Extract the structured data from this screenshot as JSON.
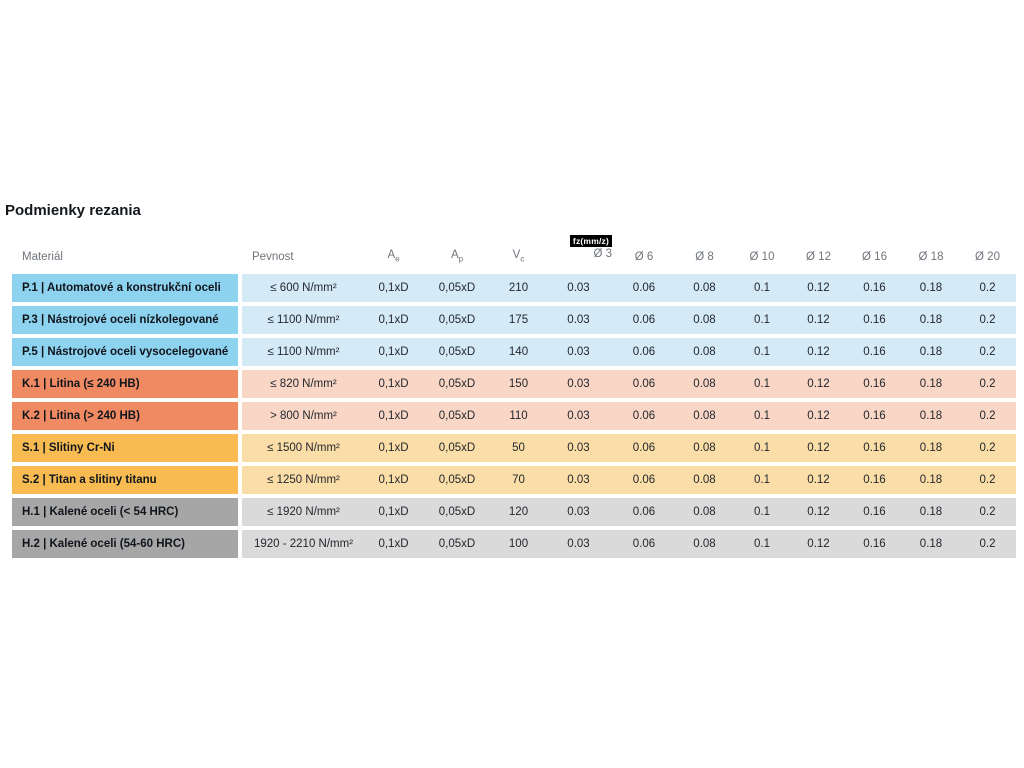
{
  "page": {
    "title": "Podmienky rezania"
  },
  "table": {
    "fz_badge": "fz(mm/z)",
    "columns": {
      "material": "Materiál",
      "pevnost": "Pevnost",
      "ae": {
        "base": "A",
        "sub": "e"
      },
      "ap": {
        "base": "A",
        "sub": "p"
      },
      "vc": {
        "base": "V",
        "sub": "c"
      },
      "diameters": [
        "Ø 3",
        "Ø 6",
        "Ø 8",
        "Ø 10",
        "Ø 12",
        "Ø 16",
        "Ø 18",
        "Ø 20"
      ]
    },
    "rows": [
      {
        "theme": "p",
        "material": "P.1 | Automatové a konstrukční oceli",
        "pevnost": "≤ 600 N/mm²",
        "ae": "0,1xD",
        "ap": "0,05xD",
        "vc": "210",
        "fz": [
          "0.03",
          "0.06",
          "0.08",
          "0.1",
          "0.12",
          "0.16",
          "0.18",
          "0.2"
        ]
      },
      {
        "theme": "p",
        "material": "P.3 | Nástrojové oceli nízkolegované",
        "pevnost": "≤ 1100 N/mm²",
        "ae": "0,1xD",
        "ap": "0,05xD",
        "vc": "175",
        "fz": [
          "0.03",
          "0.06",
          "0.08",
          "0.1",
          "0.12",
          "0.16",
          "0.18",
          "0.2"
        ]
      },
      {
        "theme": "p",
        "material": "P.5 | Nástrojové oceli vysocelegované",
        "pevnost": "≤ 1100 N/mm²",
        "ae": "0,1xD",
        "ap": "0,05xD",
        "vc": "140",
        "fz": [
          "0.03",
          "0.06",
          "0.08",
          "0.1",
          "0.12",
          "0.16",
          "0.18",
          "0.2"
        ]
      },
      {
        "theme": "k",
        "material": "K.1 | Litina (≤ 240 HB)",
        "pevnost": "≤ 820 N/mm²",
        "ae": "0,1xD",
        "ap": "0,05xD",
        "vc": "150",
        "fz": [
          "0.03",
          "0.06",
          "0.08",
          "0.1",
          "0.12",
          "0.16",
          "0.18",
          "0.2"
        ]
      },
      {
        "theme": "k",
        "material": "K.2 | Litina (> 240 HB)",
        "pevnost": "> 800 N/mm²",
        "ae": "0,1xD",
        "ap": "0,05xD",
        "vc": "110",
        "fz": [
          "0.03",
          "0.06",
          "0.08",
          "0.1",
          "0.12",
          "0.16",
          "0.18",
          "0.2"
        ]
      },
      {
        "theme": "s",
        "material": "S.1 | Slitiny Cr-Ni",
        "pevnost": "≤ 1500 N/mm²",
        "ae": "0,1xD",
        "ap": "0,05xD",
        "vc": "50",
        "fz": [
          "0.03",
          "0.06",
          "0.08",
          "0.1",
          "0.12",
          "0.16",
          "0.18",
          "0.2"
        ]
      },
      {
        "theme": "s",
        "material": "S.2 | Titan a slitiny titanu",
        "pevnost": "≤ 1250 N/mm²",
        "ae": "0,1xD",
        "ap": "0,05xD",
        "vc": "70",
        "fz": [
          "0.03",
          "0.06",
          "0.08",
          "0.1",
          "0.12",
          "0.16",
          "0.18",
          "0.2"
        ]
      },
      {
        "theme": "h",
        "material": "H.1 | Kalené oceli (< 54 HRC)",
        "pevnost": "≤ 1920 N/mm²",
        "ae": "0,1xD",
        "ap": "0,05xD",
        "vc": "120",
        "fz": [
          "0.03",
          "0.06",
          "0.08",
          "0.1",
          "0.12",
          "0.16",
          "0.18",
          "0.2"
        ]
      },
      {
        "theme": "h",
        "material": "H.2 | Kalené oceli (54-60 HRC)",
        "pevnost": "1920 - 2210 N/mm²",
        "ae": "0,1xD",
        "ap": "0,05xD",
        "vc": "100",
        "fz": [
          "0.03",
          "0.06",
          "0.08",
          "0.1",
          "0.12",
          "0.16",
          "0.18",
          "0.2"
        ]
      }
    ],
    "colors": {
      "group_p": {
        "material": "#8dd2ef",
        "cells": "#d4eaf7"
      },
      "group_k": {
        "material": "#ef8a62",
        "cells": "#f9d6c6"
      },
      "group_s": {
        "material": "#f7bb51",
        "cells": "#fadda7"
      },
      "group_h": {
        "material": "#a6a6a6",
        "cells": "#dadada"
      },
      "fz_badge_bg": "#000000",
      "fz_badge_text": "#ffffff",
      "header_text": "#6e747b",
      "title_text": "#14181d"
    }
  }
}
